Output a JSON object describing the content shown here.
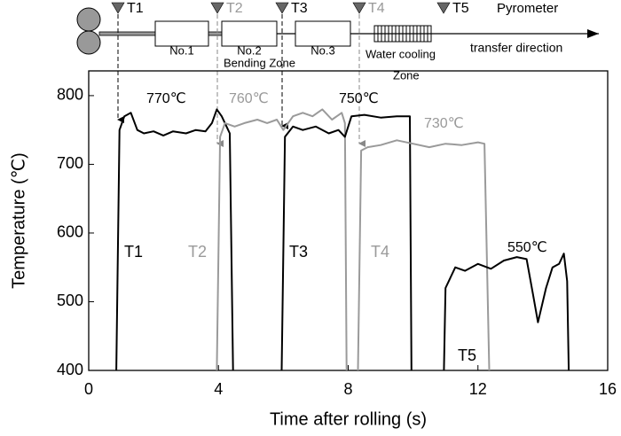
{
  "chart_data": {
    "type": "line",
    "xlabel": "Time after rolling (s)",
    "ylabel": "Temperature (℃)",
    "xlim": [
      0,
      16
    ],
    "xticks": [
      0,
      4,
      8,
      12,
      16
    ],
    "ylim": [
      400,
      836
    ],
    "yticks": [
      400,
      500,
      600,
      700,
      800
    ],
    "series": [
      {
        "name": "T1",
        "color": "#000000",
        "x": [
          0.85,
          0.95,
          1.1,
          1.3,
          1.5,
          1.7,
          2.0,
          2.3,
          2.6,
          3.0,
          3.3,
          3.6,
          3.8,
          3.95,
          4.1,
          4.3,
          4.35,
          4.45
        ],
        "values": [
          400,
          750,
          770,
          775,
          750,
          745,
          748,
          742,
          748,
          745,
          750,
          748,
          760,
          780,
          770,
          750,
          745,
          400
        ]
      },
      {
        "name": "T2",
        "color": "#9a9a9a",
        "x": [
          3.95,
          4.05,
          4.2,
          4.5,
          4.8,
          5.2,
          5.5,
          5.8,
          6.0,
          6.3,
          6.6,
          6.9,
          7.2,
          7.5,
          7.8,
          7.9,
          7.95
        ],
        "values": [
          400,
          740,
          760,
          755,
          760,
          765,
          760,
          765,
          750,
          770,
          775,
          770,
          780,
          765,
          775,
          760,
          400
        ]
      },
      {
        "name": "T3",
        "color": "#000000",
        "x": [
          5.95,
          6.05,
          6.3,
          6.6,
          7.0,
          7.4,
          7.7,
          7.9,
          8.1,
          8.5,
          9.0,
          9.5,
          9.9,
          9.95
        ],
        "values": [
          400,
          740,
          755,
          750,
          755,
          745,
          750,
          740,
          770,
          772,
          768,
          770,
          770,
          400
        ]
      },
      {
        "name": "T4",
        "color": "#9a9a9a",
        "x": [
          8.3,
          8.4,
          8.6,
          9.0,
          9.5,
          10.0,
          10.5,
          11.0,
          11.5,
          12.0,
          12.2,
          12.35
        ],
        "values": [
          400,
          720,
          725,
          728,
          735,
          730,
          725,
          730,
          728,
          732,
          730,
          400
        ]
      },
      {
        "name": "T5",
        "color": "#000000",
        "x": [
          10.95,
          11.0,
          11.3,
          11.6,
          12.0,
          12.4,
          12.8,
          13.2,
          13.5,
          13.7,
          13.85,
          14.1,
          14.3,
          14.5,
          14.65,
          14.75,
          14.8
        ],
        "values": [
          400,
          520,
          550,
          545,
          555,
          548,
          560,
          565,
          562,
          510,
          470,
          520,
          550,
          555,
          570,
          530,
          400
        ]
      }
    ],
    "annotations": [
      "770℃",
      "760℃",
      "750℃",
      "730℃",
      "550℃"
    ]
  },
  "schematic": {
    "sensors": [
      "T1",
      "T2",
      "T3",
      "T4",
      "T5"
    ],
    "sensor_note": "Pyrometer",
    "stands": [
      "No.1",
      "No.2",
      "No.3"
    ],
    "cooling": "Water cooling",
    "direction": "transfer direction",
    "zones": [
      "Bending Zone",
      "Zone"
    ]
  }
}
